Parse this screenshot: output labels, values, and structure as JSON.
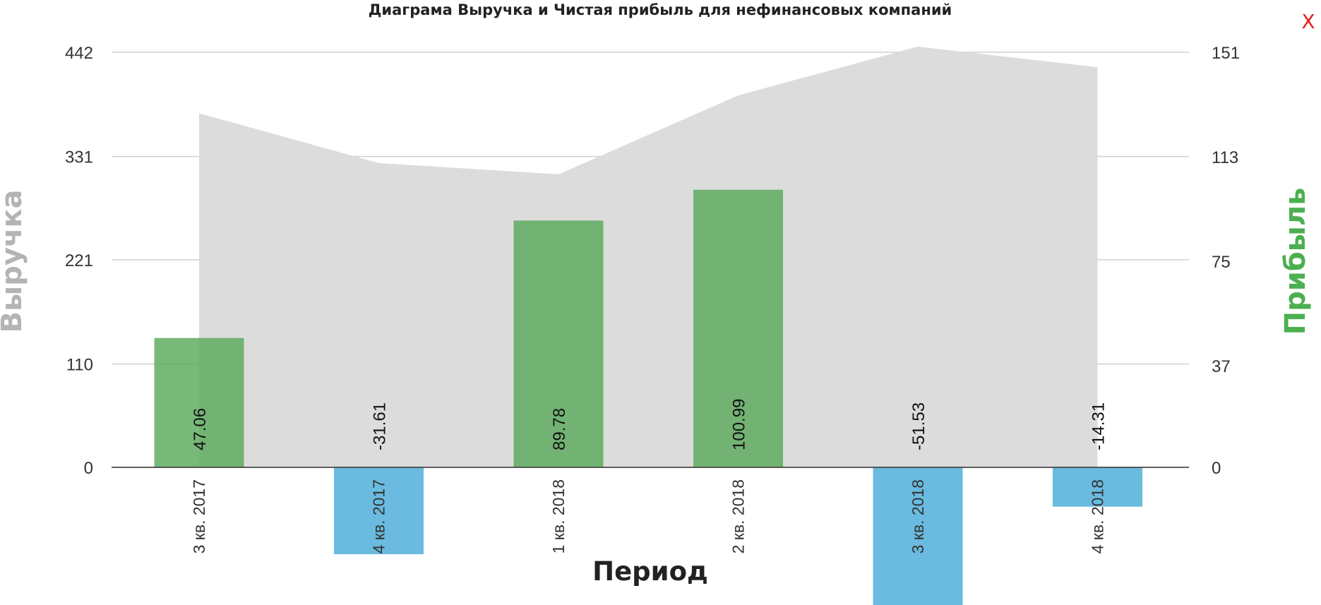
{
  "close_label": "X",
  "chart_data": {
    "type": "bar+area",
    "title": "Диаграма Выручка и Чистая прибыль для нефинансовых компаний",
    "xlabel": "Период",
    "ylabel_left": "Выручка",
    "ylabel_right": "Прибыль",
    "categories": [
      "3 кв. 2017",
      "4 кв. 2017",
      "1 кв. 2018",
      "2 кв. 2018",
      "3 кв. 2018",
      "4 кв. 2018"
    ],
    "left_ticks": [
      "442",
      "331",
      "221",
      "110",
      "0"
    ],
    "right_ticks": [
      "151",
      "113",
      "75",
      "37",
      "0"
    ],
    "left_axis": {
      "min": 0,
      "max": 442
    },
    "right_axis": {
      "min": 0,
      "max": 151
    },
    "revenue": [
      377,
      324,
      312,
      396,
      448,
      426
    ],
    "profit": [
      47.06,
      -31.61,
      89.78,
      100.99,
      -51.53,
      -14.31
    ],
    "profit_labels": [
      "47.06",
      "-31.61",
      "89.78",
      "100.99",
      "-51.53",
      "-14.31"
    ],
    "colors": {
      "area": "#dcdcdc",
      "positive_bar": "#5aa85a",
      "negative_bar": "#5ab4dc",
      "grid": "#cfcfcf",
      "left_axis_title": "#b4b4b4",
      "right_axis_title": "#4caf50"
    },
    "grid": true
  }
}
